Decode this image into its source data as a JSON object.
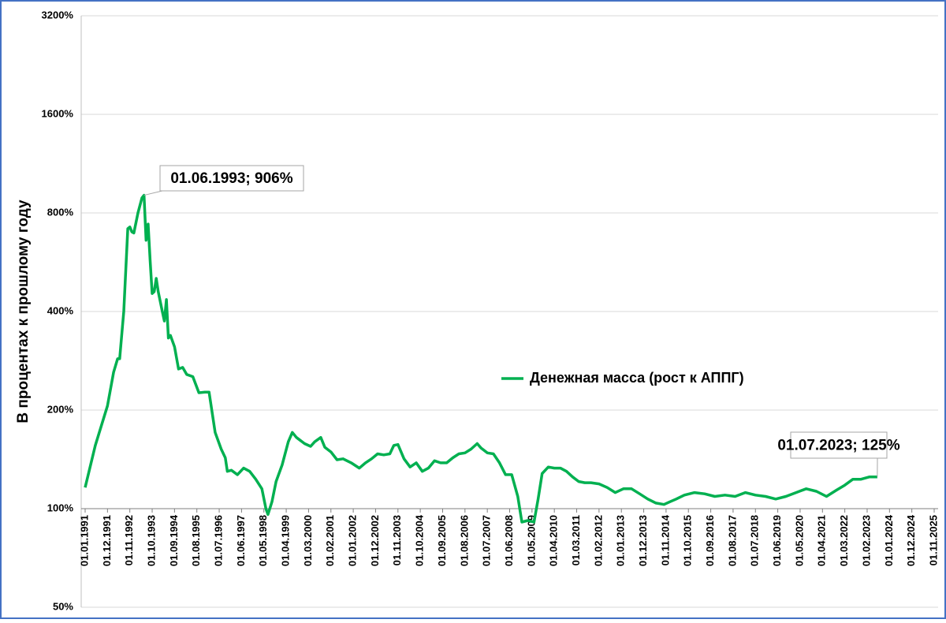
{
  "chart_data": {
    "type": "line",
    "y_axis_label": "В процентах к прошлому году",
    "log_scale_y": true,
    "grid": true,
    "legend_position": "center-right",
    "xlim": [
      "01.01.1991",
      "01.11.2025"
    ],
    "xticks": [
      "01.01.1991",
      "01.12.1991",
      "01.11.1992",
      "01.10.1993",
      "01.09.1994",
      "01.08.1995",
      "01.07.1996",
      "01.06.1997",
      "01.05.1998",
      "01.04.1999",
      "01.03.2000",
      "01.02.2001",
      "01.01.2002",
      "01.12.2002",
      "01.11.2003",
      "01.10.2004",
      "01.09.2005",
      "01.08.2006",
      "01.07.2007",
      "01.06.2008",
      "01.05.2009",
      "01.04.2010",
      "01.03.2011",
      "01.02.2012",
      "01.01.2013",
      "01.12.2013",
      "01.11.2014",
      "01.10.2015",
      "01.09.2016",
      "01.08.2017",
      "01.07.2018",
      "01.06.2019",
      "01.05.2020",
      "01.04.2021",
      "01.03.2022",
      "01.02.2023",
      "01.01.2024",
      "01.12.2024",
      "01.11.2025"
    ],
    "ylim": [
      50,
      3200
    ],
    "yticks": [
      {
        "value": 50,
        "label": "50%"
      },
      {
        "value": 100,
        "label": "100%"
      },
      {
        "value": 200,
        "label": "200%"
      },
      {
        "value": 400,
        "label": "400%"
      },
      {
        "value": 800,
        "label": "800%"
      },
      {
        "value": 1600,
        "label": "1600%"
      },
      {
        "value": 3200,
        "label": "3200%"
      }
    ],
    "x": [
      "01.01.1991",
      "01.06.1991",
      "01.12.1991",
      "01.03.1992",
      "01.05.1992",
      "01.06.1992",
      "01.08.1992",
      "01.10.1992",
      "01.11.1992",
      "01.12.1992",
      "01.01.1993",
      "01.03.1993",
      "01.05.1993",
      "01.06.1993",
      "01.07.1993",
      "01.08.1993",
      "01.09.1993",
      "01.10.1993",
      "01.11.1993",
      "01.12.1993",
      "01.01.1994",
      "01.03.1994",
      "01.04.1994",
      "01.05.1994",
      "01.06.1994",
      "01.07.1994",
      "01.09.1994",
      "01.11.1994",
      "01.01.1995",
      "01.03.1995",
      "01.06.1995",
      "01.09.1995",
      "01.12.1995",
      "01.02.1996",
      "01.05.1996",
      "01.08.1996",
      "01.10.1996",
      "01.11.1996",
      "01.01.1997",
      "01.04.1997",
      "01.07.1997",
      "01.10.1997",
      "01.01.1998",
      "01.04.1998",
      "01.06.1998",
      "01.07.1998",
      "01.09.1998",
      "01.11.1998",
      "01.02.1999",
      "01.05.1999",
      "01.07.1999",
      "01.09.1999",
      "01.01.2000",
      "01.04.2000",
      "01.06.2000",
      "01.09.2000",
      "01.11.2000",
      "01.02.2001",
      "01.05.2001",
      "01.08.2001",
      "01.12.2001",
      "01.04.2002",
      "01.07.2002",
      "01.10.2002",
      "01.01.2003",
      "01.04.2003",
      "01.07.2003",
      "01.09.2003",
      "01.11.2003",
      "01.02.2004",
      "01.05.2004",
      "01.08.2004",
      "01.11.2004",
      "01.02.2005",
      "01.05.2005",
      "01.08.2005",
      "01.11.2005",
      "01.02.2006",
      "01.05.2006",
      "01.08.2006",
      "01.11.2006",
      "01.02.2007",
      "01.04.2007",
      "01.07.2007",
      "01.10.2007",
      "01.01.2008",
      "01.04.2008",
      "01.07.2008",
      "01.10.2008",
      "01.12.2008",
      "01.03.2009",
      "01.06.2009",
      "01.08.2009",
      "01.10.2009",
      "01.01.2010",
      "01.04.2010",
      "01.07.2010",
      "01.10.2010",
      "01.01.2011",
      "01.04.2011",
      "01.07.2011",
      "01.10.2011",
      "01.02.2012",
      "01.06.2012",
      "01.10.2012",
      "01.02.2013",
      "01.06.2013",
      "01.10.2013",
      "01.02.2014",
      "01.06.2014",
      "01.10.2014",
      "01.01.2015",
      "01.04.2015",
      "01.08.2015",
      "01.01.2016",
      "01.06.2016",
      "01.11.2016",
      "01.04.2017",
      "01.09.2017",
      "01.02.2018",
      "01.07.2018",
      "01.12.2018",
      "01.05.2019",
      "01.10.2019",
      "01.03.2020",
      "01.08.2020",
      "01.01.2021",
      "01.06.2021",
      "01.11.2021",
      "01.03.2022",
      "01.07.2022",
      "01.11.2022",
      "01.03.2023",
      "01.07.2023"
    ],
    "series": [
      {
        "name": "Денежная масса (рост к АППГ)",
        "color": "#00b050",
        "values": [
          116,
          156,
          206,
          261,
          287,
          287,
          400,
          716,
          725,
          700,
          695,
          800,
          890,
          906,
          660,
          740,
          575,
          454,
          460,
          505,
          459,
          400,
          374,
          435,
          332,
          338,
          312,
          267,
          270,
          257,
          253,
          226,
          227,
          227,
          171,
          152,
          143,
          130,
          131,
          127,
          133,
          130,
          123,
          115,
          100,
          96,
          105,
          121,
          136,
          160,
          171,
          165,
          158,
          155,
          160,
          165,
          154,
          149,
          141,
          142,
          138,
          133,
          138,
          142,
          147,
          146,
          147,
          156,
          157,
          142,
          134,
          138,
          130,
          133,
          140,
          138,
          138,
          143,
          147,
          148,
          152,
          158,
          153,
          148,
          147,
          138,
          127,
          127,
          109,
          91,
          92,
          91,
          107,
          128,
          134,
          133,
          133,
          130,
          125,
          121,
          120,
          120,
          119,
          116,
          112,
          115,
          115,
          111,
          107,
          104,
          103,
          105,
          107,
          110,
          112,
          111,
          109,
          110,
          109,
          112,
          110,
          109,
          107,
          109,
          112,
          115,
          113,
          109,
          114,
          118,
          123,
          123,
          125,
          125
        ]
      }
    ],
    "annotations": [
      {
        "text": "01.06.1993; 906%",
        "x": "01.06.1993",
        "y": 906
      },
      {
        "text": "01.07.2023; 125%",
        "x": "01.07.2023",
        "y": 125
      }
    ]
  }
}
